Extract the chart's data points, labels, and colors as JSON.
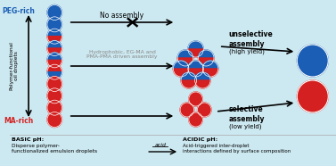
{
  "bg_color": "#cce8f0",
  "blue": "#1a5eb5",
  "red": "#d42020",
  "bottom_left_bold": "BASIC pH:",
  "bottom_left_text": "Disperse polymer-\nfunctionalized emulsion droplets",
  "bottom_mid_label": "acid",
  "bottom_right_bold": "ACIDIC pH:",
  "bottom_right_text": "Acid-triggered inter-droplet\ninteractions defined by surface composition",
  "left_label_top": "PEG-rich",
  "left_label_bottom": "MA-rich",
  "left_label_mid": "Polymer-functional\noil droplets",
  "arrow_label_top": "No assembly",
  "arrow_label_mid": "Hydrophobic, EG-MA and\nPMA-PMA driven assembly",
  "right_label_top_bold": "unselective\nassembly",
  "right_label_top_light": "(high yield)",
  "right_label_bot_bold": "selective\nassembly",
  "right_label_bot_light": "(low yield)"
}
